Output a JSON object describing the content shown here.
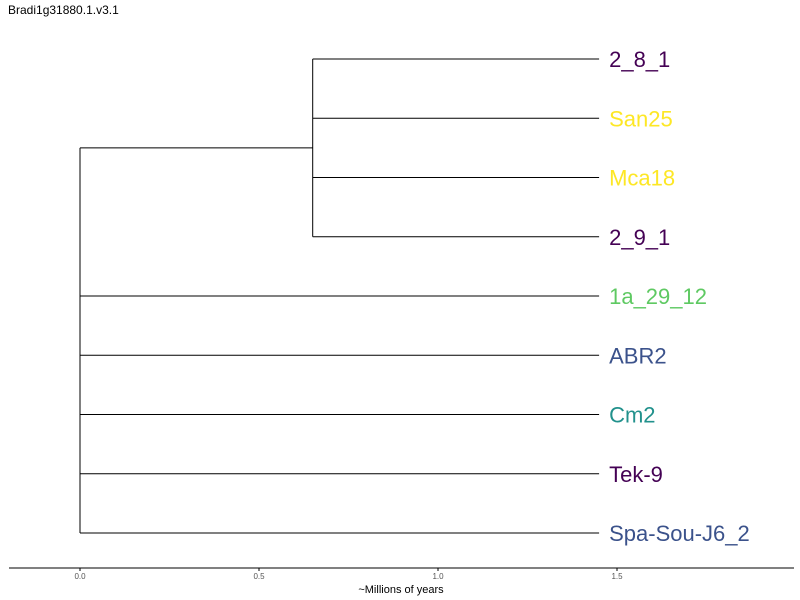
{
  "title": "Bradi1g31880.1.v3.1",
  "chart_data": {
    "type": "dendrogram",
    "title": "Bradi1g31880.1.v3.1",
    "xlabel": "~Millions of years",
    "ylabel": "",
    "xlim": [
      -0.2,
      2.0
    ],
    "xticks": [
      0.0,
      0.5,
      1.0,
      1.5
    ],
    "xtick_labels": [
      "0.0",
      "0.5",
      "1.0",
      "1.5"
    ],
    "grid": false,
    "branch_color": "#000000",
    "leaves": [
      {
        "name": "2_8_1",
        "color": "#440154",
        "depth": 1.45
      },
      {
        "name": "San25",
        "color": "#fde725",
        "depth": 1.45
      },
      {
        "name": "Mca18",
        "color": "#fde725",
        "depth": 1.45
      },
      {
        "name": "2_9_1",
        "color": "#440154",
        "depth": 1.45
      },
      {
        "name": "1a_29_12",
        "color": "#5ec962",
        "depth": 1.45
      },
      {
        "name": "ABR2",
        "color": "#3b528b",
        "depth": 1.45
      },
      {
        "name": "Cm2",
        "color": "#21918c",
        "depth": 1.45
      },
      {
        "name": "Tek-9",
        "color": "#440154",
        "depth": 1.45
      },
      {
        "name": "Spa-Sou-J6_2",
        "color": "#3b528b",
        "depth": 1.45
      }
    ],
    "clades": [
      {
        "members": [
          "2_8_1",
          "San25",
          "Mca18",
          "2_9_1"
        ],
        "depth": 0.65
      }
    ],
    "root_depth": 0.0
  }
}
